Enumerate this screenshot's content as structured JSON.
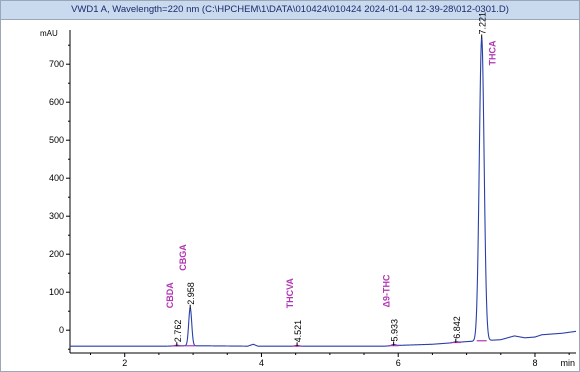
{
  "window": {
    "title": "VWD1 A, Wavelength=220 nm (C:\\HPCHEM\\1\\DATA\\010424\\010424 2024-01-04 12-39-28\\012-0301.D)"
  },
  "chart_data": {
    "type": "line",
    "ylabel": "mAU",
    "xunit": "min",
    "xlim": [
      1.2,
      8.6
    ],
    "ylim": [
      -60,
      790
    ],
    "xticks": [
      2,
      4,
      6,
      8
    ],
    "yticks": [
      0,
      100,
      200,
      300,
      400,
      500,
      600,
      700
    ],
    "baseline": [
      [
        1.2,
        -42
      ],
      [
        2.0,
        -42
      ],
      [
        2.6,
        -42
      ],
      [
        2.88,
        -41
      ],
      [
        3.1,
        -41
      ],
      [
        3.8,
        -42
      ],
      [
        3.88,
        -37
      ],
      [
        3.95,
        -42
      ],
      [
        4.5,
        -42
      ],
      [
        5.8,
        -42
      ],
      [
        6.0,
        -40
      ],
      [
        6.5,
        -37
      ],
      [
        6.8,
        -33
      ],
      [
        7.0,
        -30
      ],
      [
        7.5,
        -25
      ],
      [
        7.7,
        -15
      ],
      [
        7.85,
        -20
      ],
      [
        8.0,
        -18
      ],
      [
        8.1,
        -12
      ],
      [
        8.4,
        -8
      ],
      [
        8.6,
        -3
      ]
    ],
    "peaks": [
      {
        "rt": 2.762,
        "height": 2,
        "width": 0.03,
        "name": "CBDA"
      },
      {
        "rt": 2.958,
        "height": 100,
        "width": 0.022,
        "name": "CBGA"
      },
      {
        "rt": 4.521,
        "height": 2,
        "width": 0.03,
        "name": "THCVA"
      },
      {
        "rt": 5.933,
        "height": 3,
        "width": 0.03,
        "name": "Δ9-THC"
      },
      {
        "rt": 6.842,
        "height": 2,
        "width": 0.03,
        "name": ""
      },
      {
        "rt": 7.221,
        "height": 798,
        "width": 0.035,
        "name": "THCA"
      }
    ],
    "peak_rt_labels": [
      "2.762",
      "2.958",
      "4.521",
      "5.933",
      "6.842",
      "7.221"
    ],
    "compound_labels": [
      "CBDA",
      "CBGA",
      "THCVA",
      "Δ9-THC",
      "THCA"
    ]
  },
  "colors": {
    "trace": "#2a3fa8",
    "compound": "#b235b5",
    "axis": "#000000"
  }
}
